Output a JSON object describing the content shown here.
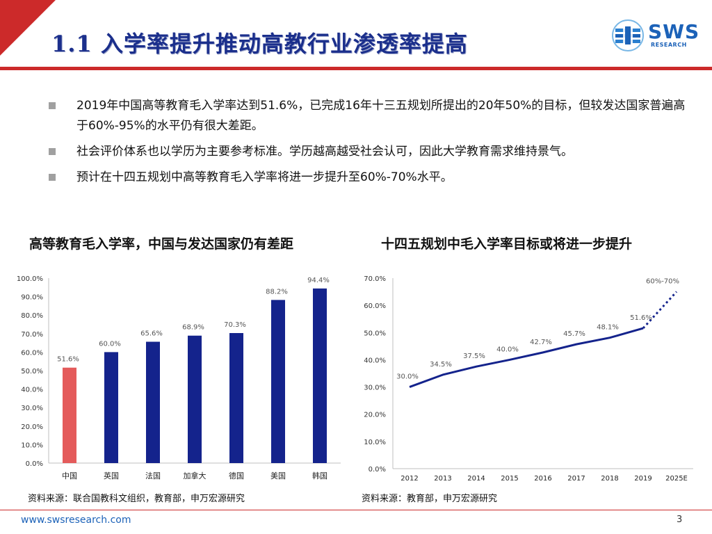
{
  "header": {
    "title": "1.1 入学率提升推动高教行业渗透率提高",
    "logo_text": "SWS",
    "logo_sub": "RESEARCH",
    "accent_red": "#cc2a2a",
    "brand_blue": "#1b2f8c"
  },
  "bullets": [
    "2019年中国高等教育毛入学率达到51.6%，已完成16年十三五规划所提出的20年50%的目标，但较发达国家普遍高于60%-95%的水平仍有很大差距。",
    "社会评价体系也以学历为主要参考标准。学历越高越受社会认可，因此大学教育需求维持景气。",
    "预计在十四五规划中高等教育毛入学率将进一步提升至60%-70%水平。"
  ],
  "left_chart": {
    "heading": "高等教育毛入学率，中国与发达国家仍有差距",
    "source": "资料来源：联合国教科文组织，教育部，申万宏源研究"
  },
  "right_chart": {
    "heading": "十四五规划中毛入学率目标或将进一步提升",
    "source": "资料来源：教育部，申万宏源研究"
  },
  "footer": {
    "url": "www.swsresearch.com",
    "page": "3"
  },
  "chart_data": [
    {
      "type": "bar",
      "title": "",
      "categories": [
        "中国",
        "英国",
        "法国",
        "加拿大",
        "德国",
        "美国",
        "韩国"
      ],
      "values": [
        51.6,
        60.0,
        65.6,
        68.9,
        70.3,
        88.2,
        94.4
      ],
      "labels": [
        "51.6%",
        "60.0%",
        "65.6%",
        "68.9%",
        "70.3%",
        "88.2%",
        "94.4%"
      ],
      "colors": [
        "#e45b5b",
        "#14238c",
        "#14238c",
        "#14238c",
        "#14238c",
        "#14238c",
        "#14238c"
      ],
      "ylim": [
        0,
        100
      ],
      "yticks": [
        "0.0%",
        "10.0%",
        "20.0%",
        "30.0%",
        "40.0%",
        "50.0%",
        "60.0%",
        "70.0%",
        "80.0%",
        "90.0%",
        "100.0%"
      ],
      "grid": false,
      "legend": "none"
    },
    {
      "type": "line",
      "title": "",
      "categories": [
        "2012",
        "2013",
        "2014",
        "2015",
        "2016",
        "2017",
        "2018",
        "2019",
        "2025E"
      ],
      "values": [
        30.0,
        34.5,
        37.5,
        40.0,
        42.7,
        45.7,
        48.1,
        51.6,
        65.0
      ],
      "labels": [
        "30.0%",
        "34.5%",
        "37.5%",
        "40.0%",
        "42.7%",
        "45.7%",
        "48.1%",
        "51.6%",
        "60%-70%"
      ],
      "projected_from_index": 7,
      "line_color": "#14238c",
      "ylim": [
        0,
        70
      ],
      "yticks": [
        "0.0%",
        "10.0%",
        "20.0%",
        "30.0%",
        "40.0%",
        "50.0%",
        "60.0%",
        "70.0%"
      ],
      "grid": false,
      "legend": "none"
    }
  ]
}
